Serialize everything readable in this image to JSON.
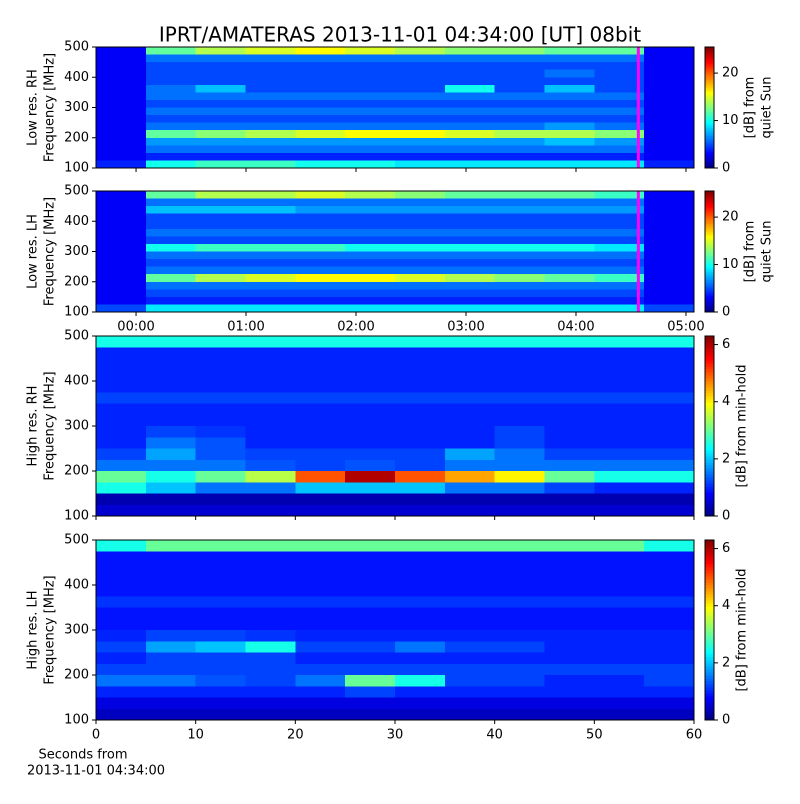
{
  "chart_data": [
    {
      "type": "heatmap",
      "title": "IPRT/AMATERAS 2013-11-01 04:34:00 [UT]   08bit",
      "ylabel": [
        "Low res. RH",
        "Frequency [MHz]"
      ],
      "colorbar_label": [
        "[dB] from",
        "quiet Sun"
      ],
      "colormap": "jet",
      "clim": [
        0,
        25.5
      ],
      "cticks": [
        0,
        10,
        20
      ],
      "xlim": [
        -0.364,
        5.073
      ],
      "xticks": [
        0,
        1,
        2,
        3,
        4,
        5
      ],
      "xtick_labels_shown": false,
      "ylim": [
        100,
        500
      ],
      "yticks": [
        100,
        200,
        300,
        400,
        500
      ],
      "marker_line": {
        "x": 4.567,
        "color": "#ff00ff"
      },
      "z": [
        [
          3,
          12,
          14,
          15,
          16,
          15,
          14,
          13,
          13,
          12,
          12,
          3
        ],
        [
          3,
          6,
          6,
          6,
          6,
          6,
          6,
          6,
          6,
          6,
          6,
          3
        ],
        [
          3,
          5,
          5,
          5,
          5,
          5,
          5,
          5,
          5,
          5,
          5,
          3
        ],
        [
          3,
          5,
          5,
          5,
          5,
          5,
          5,
          5,
          5,
          6,
          5,
          3
        ],
        [
          3,
          5,
          5,
          5,
          5,
          5,
          5,
          5,
          5,
          5,
          5,
          3
        ],
        [
          3,
          6,
          8,
          5,
          5,
          5,
          5,
          10,
          5,
          8,
          5,
          3
        ],
        [
          3,
          6,
          6,
          6,
          6,
          6,
          6,
          6,
          6,
          6,
          6,
          3
        ],
        [
          3,
          5,
          5,
          5,
          5,
          5,
          5,
          5,
          5,
          5,
          5,
          3
        ],
        [
          3,
          6,
          6,
          6,
          6,
          6,
          6,
          6,
          6,
          6,
          6,
          3
        ],
        [
          3,
          5,
          5,
          5,
          5,
          5,
          5,
          5,
          5,
          5,
          5,
          3
        ],
        [
          3,
          6,
          6,
          6,
          6,
          6,
          6,
          6,
          6,
          7,
          6,
          3
        ],
        [
          3,
          12,
          13,
          14,
          15,
          16,
          16,
          15,
          14,
          14,
          13,
          3
        ],
        [
          3,
          7,
          7,
          7,
          7,
          7,
          7,
          7,
          7,
          8,
          7,
          3
        ],
        [
          3,
          6,
          6,
          6,
          6,
          6,
          6,
          6,
          6,
          6,
          6,
          3
        ],
        [
          3,
          4,
          4,
          4,
          4,
          4,
          4,
          4,
          4,
          4,
          4,
          3
        ],
        [
          4,
          10,
          11,
          11,
          10,
          10,
          9,
          9,
          9,
          9,
          9,
          4
        ]
      ]
    },
    {
      "type": "heatmap",
      "ylabel": [
        "Low res. LH",
        "Frequency [MHz]"
      ],
      "colorbar_label": [
        "[dB] from",
        "quiet Sun"
      ],
      "colormap": "jet",
      "clim": [
        0,
        25.5
      ],
      "cticks": [
        0,
        10,
        20
      ],
      "xlim": [
        -0.364,
        5.073
      ],
      "xticks": [
        {
          "value": 0,
          "label": "00:00"
        },
        {
          "value": 1,
          "label": "01:00"
        },
        {
          "value": 2,
          "label": "02:00"
        },
        {
          "value": 3,
          "label": "03:00"
        },
        {
          "value": 4,
          "label": "04:00"
        },
        {
          "value": 5,
          "label": "05:00"
        }
      ],
      "xtick_labels_shown": true,
      "ylim": [
        100,
        500
      ],
      "yticks": [
        100,
        200,
        300,
        400,
        500
      ],
      "marker_line": {
        "x": 4.567,
        "color": "#ff00ff"
      },
      "z": [
        [
          3,
          12,
          14,
          14,
          15,
          14,
          13,
          12,
          12,
          12,
          11,
          3
        ],
        [
          3,
          6,
          6,
          6,
          6,
          6,
          6,
          6,
          6,
          6,
          6,
          3
        ],
        [
          3,
          8,
          8,
          8,
          7,
          7,
          7,
          7,
          7,
          7,
          7,
          3
        ],
        [
          3,
          5,
          5,
          5,
          5,
          5,
          5,
          5,
          5,
          5,
          5,
          3
        ],
        [
          3,
          5,
          5,
          5,
          5,
          5,
          5,
          5,
          5,
          5,
          5,
          3
        ],
        [
          3,
          6,
          6,
          6,
          6,
          6,
          6,
          6,
          6,
          6,
          6,
          3
        ],
        [
          3,
          5,
          5,
          5,
          5,
          5,
          5,
          5,
          5,
          5,
          5,
          3
        ],
        [
          3,
          10,
          11,
          11,
          11,
          10,
          10,
          10,
          10,
          10,
          9,
          3
        ],
        [
          3,
          6,
          6,
          6,
          6,
          6,
          6,
          6,
          6,
          6,
          6,
          3
        ],
        [
          3,
          5,
          5,
          5,
          5,
          5,
          5,
          5,
          5,
          5,
          5,
          3
        ],
        [
          3,
          6,
          6,
          6,
          6,
          6,
          6,
          6,
          6,
          6,
          6,
          3
        ],
        [
          3,
          12,
          14,
          15,
          16,
          16,
          15,
          14,
          13,
          12,
          11,
          3
        ],
        [
          3,
          6,
          6,
          6,
          6,
          6,
          6,
          6,
          6,
          6,
          6,
          3
        ],
        [
          3,
          5,
          5,
          5,
          5,
          5,
          5,
          5,
          5,
          5,
          5,
          3
        ],
        [
          3,
          4,
          4,
          4,
          4,
          4,
          4,
          4,
          4,
          4,
          4,
          3
        ],
        [
          5,
          9,
          9,
          9,
          9,
          9,
          9,
          9,
          9,
          9,
          9,
          5
        ]
      ]
    },
    {
      "type": "heatmap",
      "ylabel": [
        "High res. RH",
        "Frequency [MHz]"
      ],
      "colorbar_label": [
        "[dB] from min-hold"
      ],
      "colormap": "jet",
      "clim": [
        0,
        6.3
      ],
      "cticks": [
        0,
        2,
        4,
        6
      ],
      "xlim": [
        0,
        60
      ],
      "xticks": [
        0,
        10,
        20,
        30,
        40,
        50,
        60
      ],
      "xtick_labels_shown": false,
      "ylim": [
        100,
        500
      ],
      "yticks": [
        100,
        200,
        300,
        400,
        500
      ],
      "z": [
        [
          2.5,
          2.5,
          2.5,
          2.5,
          2.5,
          2.5,
          2.5,
          2.5,
          2.5,
          2.5,
          2.5,
          2.5
        ],
        [
          1,
          1,
          1,
          1,
          1,
          1,
          1,
          1,
          1,
          1,
          1,
          1
        ],
        [
          1,
          1,
          1,
          1,
          1,
          1,
          1,
          1,
          1,
          1,
          1,
          1
        ],
        [
          1,
          1,
          1,
          1,
          1,
          1,
          1,
          1,
          1,
          1,
          1,
          1
        ],
        [
          1,
          1,
          1,
          1,
          1,
          1,
          1,
          1,
          1,
          1,
          1,
          1
        ],
        [
          1.2,
          1.2,
          1.2,
          1.2,
          1.2,
          1.2,
          1.2,
          1.2,
          1.2,
          1.2,
          1.2,
          1.2
        ],
        [
          1,
          1,
          1,
          1,
          1,
          1,
          1,
          1,
          1,
          1,
          1,
          1
        ],
        [
          1,
          1,
          1,
          1,
          1,
          1,
          1,
          1,
          1,
          1,
          1,
          1
        ],
        [
          1,
          1.2,
          1.1,
          1,
          1,
          1,
          1,
          1,
          1.2,
          1,
          1,
          1
        ],
        [
          1,
          1.5,
          1.3,
          1,
          1,
          1,
          1,
          1,
          1.2,
          1,
          1,
          1
        ],
        [
          1.2,
          1.8,
          1.3,
          1.2,
          1.2,
          1.2,
          1.2,
          1.8,
          1.5,
          1.2,
          1.2,
          1.2
        ],
        [
          1.5,
          1.5,
          1.5,
          1.3,
          1.2,
          1.3,
          1.2,
          1.5,
          1.5,
          1.5,
          1.5,
          1.5
        ],
        [
          3,
          2.5,
          3,
          3.5,
          5,
          6,
          5,
          4.5,
          4,
          3,
          2.5,
          2.5
        ],
        [
          2.5,
          2,
          1.5,
          1.5,
          2,
          2,
          2,
          1.5,
          1.5,
          1.2,
          1,
          1
        ],
        [
          0.3,
          0.3,
          0.3,
          0.3,
          0.3,
          0.3,
          0.3,
          0.3,
          0.3,
          0.3,
          0.3,
          0.3
        ],
        [
          0.5,
          0.5,
          0.5,
          0.5,
          0.5,
          0.5,
          0.5,
          0.5,
          0.5,
          0.5,
          0.5,
          0.5
        ]
      ]
    },
    {
      "type": "heatmap",
      "ylabel": [
        "High res. LH",
        "Frequency [MHz]"
      ],
      "colorbar_label": [
        "[dB] from min-hold"
      ],
      "colormap": "jet",
      "clim": [
        0,
        6.3
      ],
      "cticks": [
        0,
        2,
        4,
        6
      ],
      "xlim": [
        0,
        60
      ],
      "xticks": [
        0,
        10,
        20,
        30,
        40,
        50,
        60
      ],
      "xtick_labels_shown": true,
      "xlabel": [
        "Seconds from",
        "2013-11-01 04:34:00"
      ],
      "ylim": [
        100,
        500
      ],
      "yticks": [
        100,
        200,
        300,
        400,
        500
      ],
      "z": [
        [
          2.5,
          3,
          3,
          3,
          3,
          3,
          3,
          3,
          3,
          3,
          3,
          2.5
        ],
        [
          0.9,
          0.9,
          0.9,
          0.9,
          0.9,
          0.9,
          0.9,
          0.9,
          0.9,
          0.9,
          0.9,
          0.9
        ],
        [
          0.9,
          0.9,
          0.9,
          0.9,
          0.9,
          0.9,
          0.9,
          0.9,
          0.9,
          0.9,
          0.9,
          0.9
        ],
        [
          0.9,
          0.9,
          0.9,
          0.9,
          0.9,
          0.9,
          0.9,
          0.9,
          0.9,
          0.9,
          0.9,
          0.9
        ],
        [
          0.9,
          0.9,
          0.9,
          0.9,
          0.9,
          0.9,
          0.9,
          0.9,
          0.9,
          0.9,
          0.9,
          0.9
        ],
        [
          1.1,
          1.1,
          1.1,
          1.1,
          1.1,
          1.1,
          1.1,
          1.1,
          1.1,
          1.1,
          1.1,
          1.1
        ],
        [
          0.9,
          0.9,
          0.9,
          0.9,
          0.9,
          0.9,
          0.9,
          0.9,
          0.9,
          0.9,
          0.9,
          0.9
        ],
        [
          0.9,
          0.9,
          0.9,
          0.9,
          0.9,
          0.9,
          0.9,
          0.9,
          0.9,
          0.9,
          0.9,
          0.9
        ],
        [
          1,
          1.2,
          1.2,
          1.1,
          1,
          1,
          1,
          1,
          1,
          1,
          1,
          1
        ],
        [
          1.2,
          1.8,
          2,
          2.5,
          1.2,
          1.2,
          1.5,
          1.2,
          1.2,
          1,
          1,
          1
        ],
        [
          1,
          1.2,
          1.2,
          1.2,
          1,
          1,
          1,
          1,
          1,
          1,
          1,
          1
        ],
        [
          1.2,
          1.2,
          1.2,
          1.2,
          1.2,
          1.2,
          1.2,
          1.2,
          1.2,
          1.2,
          1.2,
          1.2
        ],
        [
          1.5,
          1.5,
          1.3,
          1.2,
          1.5,
          3,
          2.5,
          1.2,
          1.2,
          1,
          1,
          1.2
        ],
        [
          1,
          1,
          1,
          1,
          1,
          1.2,
          1,
          1,
          1,
          1,
          1,
          1
        ],
        [
          0.6,
          0.6,
          0.6,
          0.6,
          0.6,
          0.6,
          0.6,
          0.6,
          0.6,
          0.6,
          0.6,
          0.6
        ],
        [
          0.4,
          0.4,
          0.4,
          0.4,
          0.4,
          0.4,
          0.4,
          0.4,
          0.4,
          0.4,
          0.4,
          0.4
        ]
      ]
    }
  ]
}
